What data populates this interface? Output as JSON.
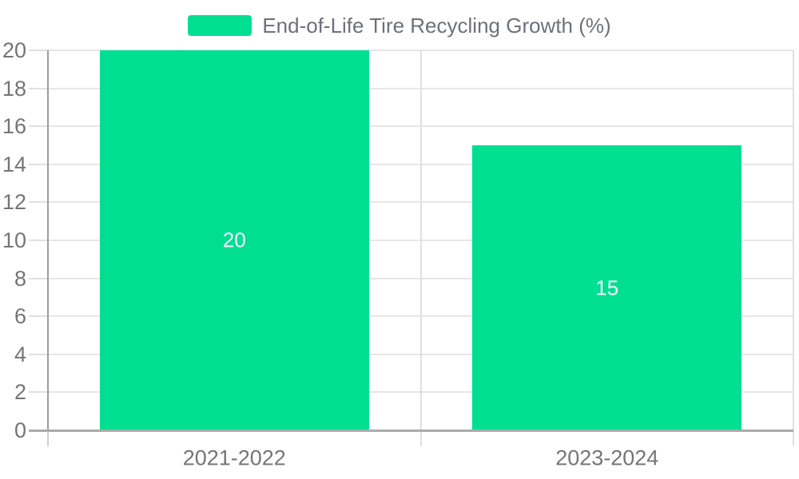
{
  "legend": {
    "label": "End-of-Life Tire Recycling Growth (%)"
  },
  "chart_data": {
    "type": "bar",
    "title": "End-of-Life Tire Recycling Growth (%)",
    "categories": [
      "2021-2022",
      "2023-2024"
    ],
    "series": [
      {
        "name": "End-of-Life Tire Recycling Growth (%)",
        "values": [
          20,
          15
        ]
      }
    ],
    "value_labels": [
      "20",
      "15"
    ],
    "xlabel": "",
    "ylabel": "",
    "ylim": [
      0,
      20
    ],
    "ytick_step": 2,
    "ytick_labels": [
      "0",
      "2",
      "4",
      "6",
      "8",
      "10",
      "12",
      "14",
      "16",
      "18",
      "20"
    ],
    "grid": true,
    "legend_position": "top-center",
    "colors": {
      "bar": "#00DE92",
      "value_label": "#FFFFFF",
      "axis_label": "#757575",
      "legend_text": "#6E7079"
    }
  }
}
